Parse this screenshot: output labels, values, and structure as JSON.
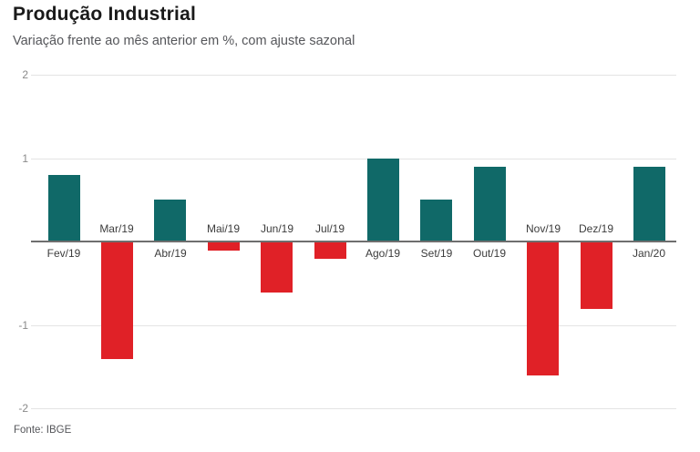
{
  "header": {
    "title": "Produção Industrial",
    "subtitle": "Variação frente ao mês anterior em %, com ajuste sazonal"
  },
  "footer": {
    "source": "Fonte: IBGE"
  },
  "chart_data": {
    "type": "bar",
    "title": "Produção Industrial",
    "subtitle": "Variação frente ao mês anterior em %, com ajuste sazonal",
    "xlabel": "",
    "ylabel": "Variação frente ao mês anterior em %",
    "categories": [
      "Fev/19",
      "Mar/19",
      "Abr/19",
      "Mai/19",
      "Jun/19",
      "Jul/19",
      "Ago/19",
      "Set/19",
      "Out/19",
      "Nov/19",
      "Dez/19",
      "Jan/20"
    ],
    "values": [
      0.8,
      -1.4,
      0.5,
      -0.1,
      -0.6,
      -0.2,
      1.0,
      0.5,
      0.9,
      -1.6,
      -0.8,
      0.9
    ],
    "ylim": [
      -2,
      2
    ],
    "yticks": [
      2,
      1,
      -1,
      -2
    ],
    "grid": true,
    "legend": false,
    "label_placement": "opposite-side-of-zero-axis",
    "colors": {
      "positive_bar": "#106968",
      "negative_bar": "#e02127",
      "zero_line": "#6e6e6e",
      "gridline": "#e4e4e4",
      "tick_label": "#8a8a8a",
      "category_label": "#3c3c3c",
      "title": "#1a1a1a",
      "subtitle": "#55565a",
      "background": "#ffffff"
    },
    "source": "Fonte: IBGE"
  }
}
